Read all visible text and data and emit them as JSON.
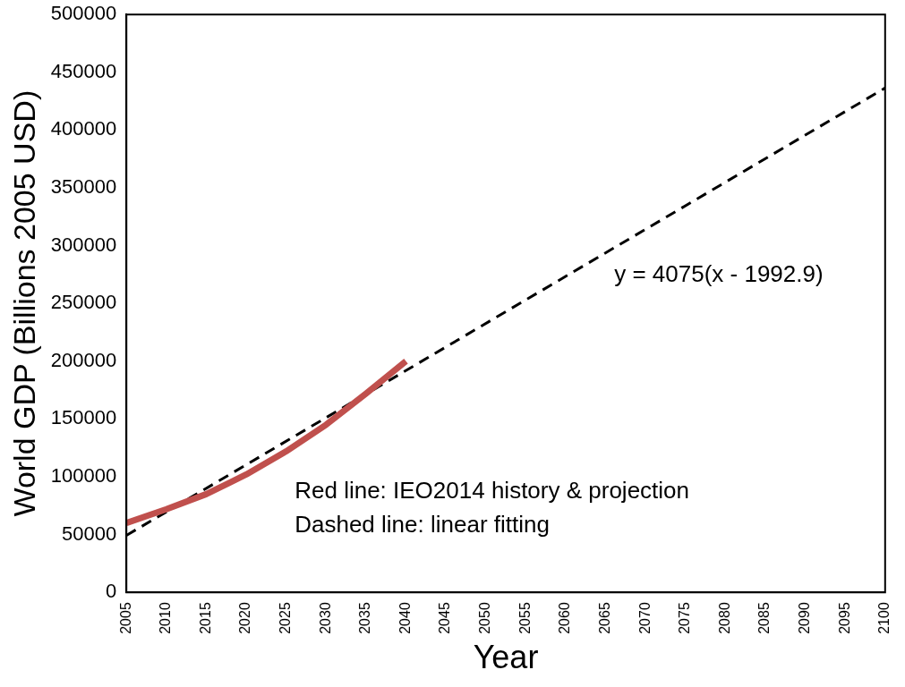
{
  "chart_data": {
    "type": "line",
    "xlabel": "Year",
    "ylabel": "World GDP (Billions 2005 USD)",
    "x": [
      2005,
      2010,
      2015,
      2020,
      2025,
      2030,
      2035,
      2040
    ],
    "series": [
      {
        "color": "#c0504d",
        "line_style": "solid",
        "values": [
          60000,
          72000,
          85000,
          102000,
          122000,
          145000,
          172000,
          200000
        ]
      },
      {
        "color": "#000000",
        "line_style": "dashed",
        "x": [
          2005,
          2100
        ],
        "values": [
          49300,
          436400
        ]
      }
    ],
    "xlim": [
      2005,
      2100
    ],
    "xticks": [
      2005,
      2010,
      2015,
      2020,
      2025,
      2030,
      2035,
      2040,
      2045,
      2050,
      2055,
      2060,
      2065,
      2070,
      2075,
      2080,
      2085,
      2090,
      2095,
      2100
    ],
    "ylim": [
      0,
      500000
    ],
    "yticks": [
      0,
      50000,
      100000,
      150000,
      200000,
      250000,
      300000,
      350000,
      400000,
      450000,
      500000
    ],
    "grid": false,
    "legend": false,
    "marker": "none",
    "annotations": [
      "y = 4075(x - 1992.9)",
      "Red line: IEO2014 history & projection",
      "Dashed line: linear fitting"
    ]
  }
}
